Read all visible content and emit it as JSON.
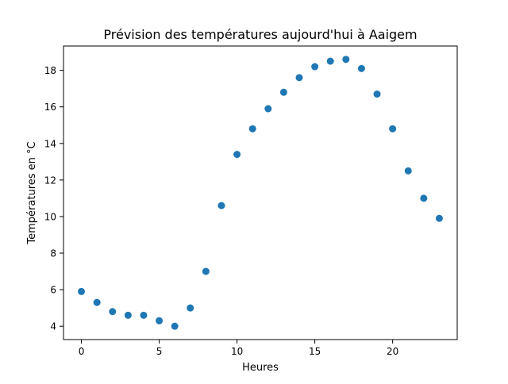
{
  "chart_data": {
    "type": "scatter",
    "title": "Prévision des températures aujourd'hui à Aaigem",
    "xlabel": "Heures",
    "ylabel": "Températures en °C",
    "xlim": [
      -1.15,
      24.15
    ],
    "ylim": [
      3.27,
      19.33
    ],
    "xticks": [
      0,
      5,
      10,
      15,
      20
    ],
    "yticks": [
      4,
      6,
      8,
      10,
      12,
      14,
      16,
      18
    ],
    "xtick_labels": [
      "0",
      "5",
      "10",
      "15",
      "20"
    ],
    "ytick_labels": [
      "4",
      "6",
      "8",
      "10",
      "12",
      "14",
      "16",
      "18"
    ],
    "grid": false,
    "marker_color": "#1f77b4",
    "x": [
      0,
      1,
      2,
      3,
      4,
      5,
      6,
      7,
      8,
      9,
      10,
      11,
      12,
      13,
      14,
      15,
      16,
      17,
      18,
      19,
      20,
      21,
      22,
      23
    ],
    "y": [
      5.9,
      5.3,
      4.8,
      4.6,
      4.6,
      4.3,
      4.0,
      5.0,
      7.0,
      10.6,
      13.4,
      14.8,
      15.9,
      16.8,
      17.6,
      18.2,
      18.5,
      18.6,
      18.1,
      16.7,
      14.8,
      12.5,
      11.0,
      9.9
    ]
  }
}
